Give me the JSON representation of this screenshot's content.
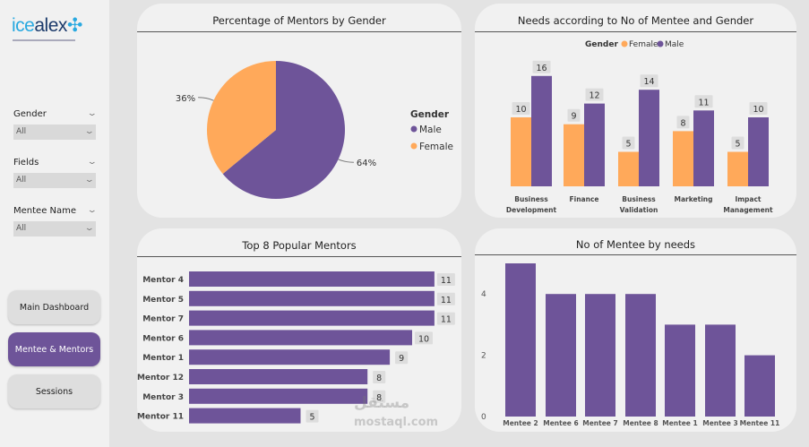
{
  "logo": {
    "part1": "ice",
    "part2": "alex"
  },
  "filters": [
    {
      "label": "Gender",
      "value": "All"
    },
    {
      "label": "Fields",
      "value": "All"
    },
    {
      "label": "Mentee Name",
      "value": "All"
    }
  ],
  "nav": [
    {
      "label": "Main Dashboard",
      "active": false
    },
    {
      "label": "Mentee & Mentors",
      "active": true
    },
    {
      "label": "Sessions",
      "active": false
    }
  ],
  "colors": {
    "male": "#6e5499",
    "female": "#ffa95a"
  },
  "watermark": "mostaql.com",
  "chart_data": [
    {
      "type": "pie",
      "title": "Percentage of Mentors by Gender",
      "legend_title": "Gender",
      "legend_position": "right",
      "slices": [
        {
          "name": "Male",
          "value": 64,
          "label": "64%"
        },
        {
          "name": "Female",
          "value": 36,
          "label": "36%"
        }
      ]
    },
    {
      "type": "bar",
      "title": "Needs according to No of Mentee and Gender",
      "legend_title": "Gender",
      "legend_position": "top",
      "categories": [
        "Business Development",
        "Finance",
        "Business Validation",
        "Marketing",
        "Impact Management"
      ],
      "series": [
        {
          "name": "Female",
          "values": [
            10,
            9,
            5,
            8,
            5
          ]
        },
        {
          "name": "Male",
          "values": [
            16,
            12,
            14,
            11,
            10
          ]
        }
      ]
    },
    {
      "type": "bar",
      "orientation": "horizontal",
      "title": "Top 8 Popular Mentors",
      "categories": [
        "Mentor 4",
        "Mentor 5",
        "Mentor 7",
        "Mentor 6",
        "Mentor 1",
        "Mentor 12",
        "Mentor 3",
        "Mentor 11"
      ],
      "values": [
        11,
        11,
        11,
        10,
        9,
        8,
        8,
        5
      ]
    },
    {
      "type": "bar",
      "title": "No of Mentee by needs",
      "categories": [
        "Mentee 2",
        "Mentee 6",
        "Mentee 7",
        "Mentee 8",
        "Mentee 1",
        "Mentee 3",
        "Mentee 11"
      ],
      "values": [
        5,
        4,
        4,
        4,
        3,
        3,
        2
      ],
      "yticks": [
        "0",
        "2",
        "4"
      ],
      "ylim": [
        0,
        5
      ]
    }
  ]
}
